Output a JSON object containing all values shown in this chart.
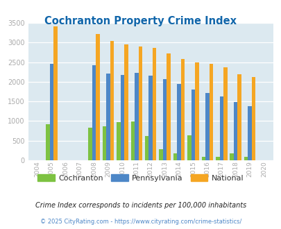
{
  "title": "Cochranton Property Crime Index",
  "years": [
    2004,
    2005,
    2006,
    2007,
    2008,
    2009,
    2010,
    2011,
    2012,
    2013,
    2014,
    2015,
    2016,
    2017,
    2018,
    2019,
    2020
  ],
  "cochranton": [
    0,
    920,
    0,
    0,
    830,
    860,
    965,
    990,
    620,
    290,
    175,
    640,
    90,
    90,
    175,
    90,
    0
  ],
  "pennsylvania": [
    0,
    2460,
    0,
    0,
    2430,
    2205,
    2175,
    2235,
    2155,
    2075,
    1950,
    1800,
    1710,
    1630,
    1490,
    1385,
    0
  ],
  "national": [
    0,
    3415,
    0,
    0,
    3210,
    3045,
    2950,
    2905,
    2855,
    2730,
    2585,
    2490,
    2460,
    2365,
    2200,
    2115,
    0
  ],
  "cochranton_color": "#7dc242",
  "pennsylvania_color": "#4d87c7",
  "national_color": "#f5a623",
  "bg_color": "#dce9f0",
  "ylim": [
    0,
    3500
  ],
  "yticks": [
    0,
    500,
    1000,
    1500,
    2000,
    2500,
    3000,
    3500
  ],
  "title_color": "#1166aa",
  "footnote1": "Crime Index corresponds to incidents per 100,000 inhabitants",
  "footnote2": "© 2025 CityRating.com - https://www.cityrating.com/crime-statistics/",
  "footnote1_color": "#222222",
  "footnote2_color": "#4d87c7"
}
